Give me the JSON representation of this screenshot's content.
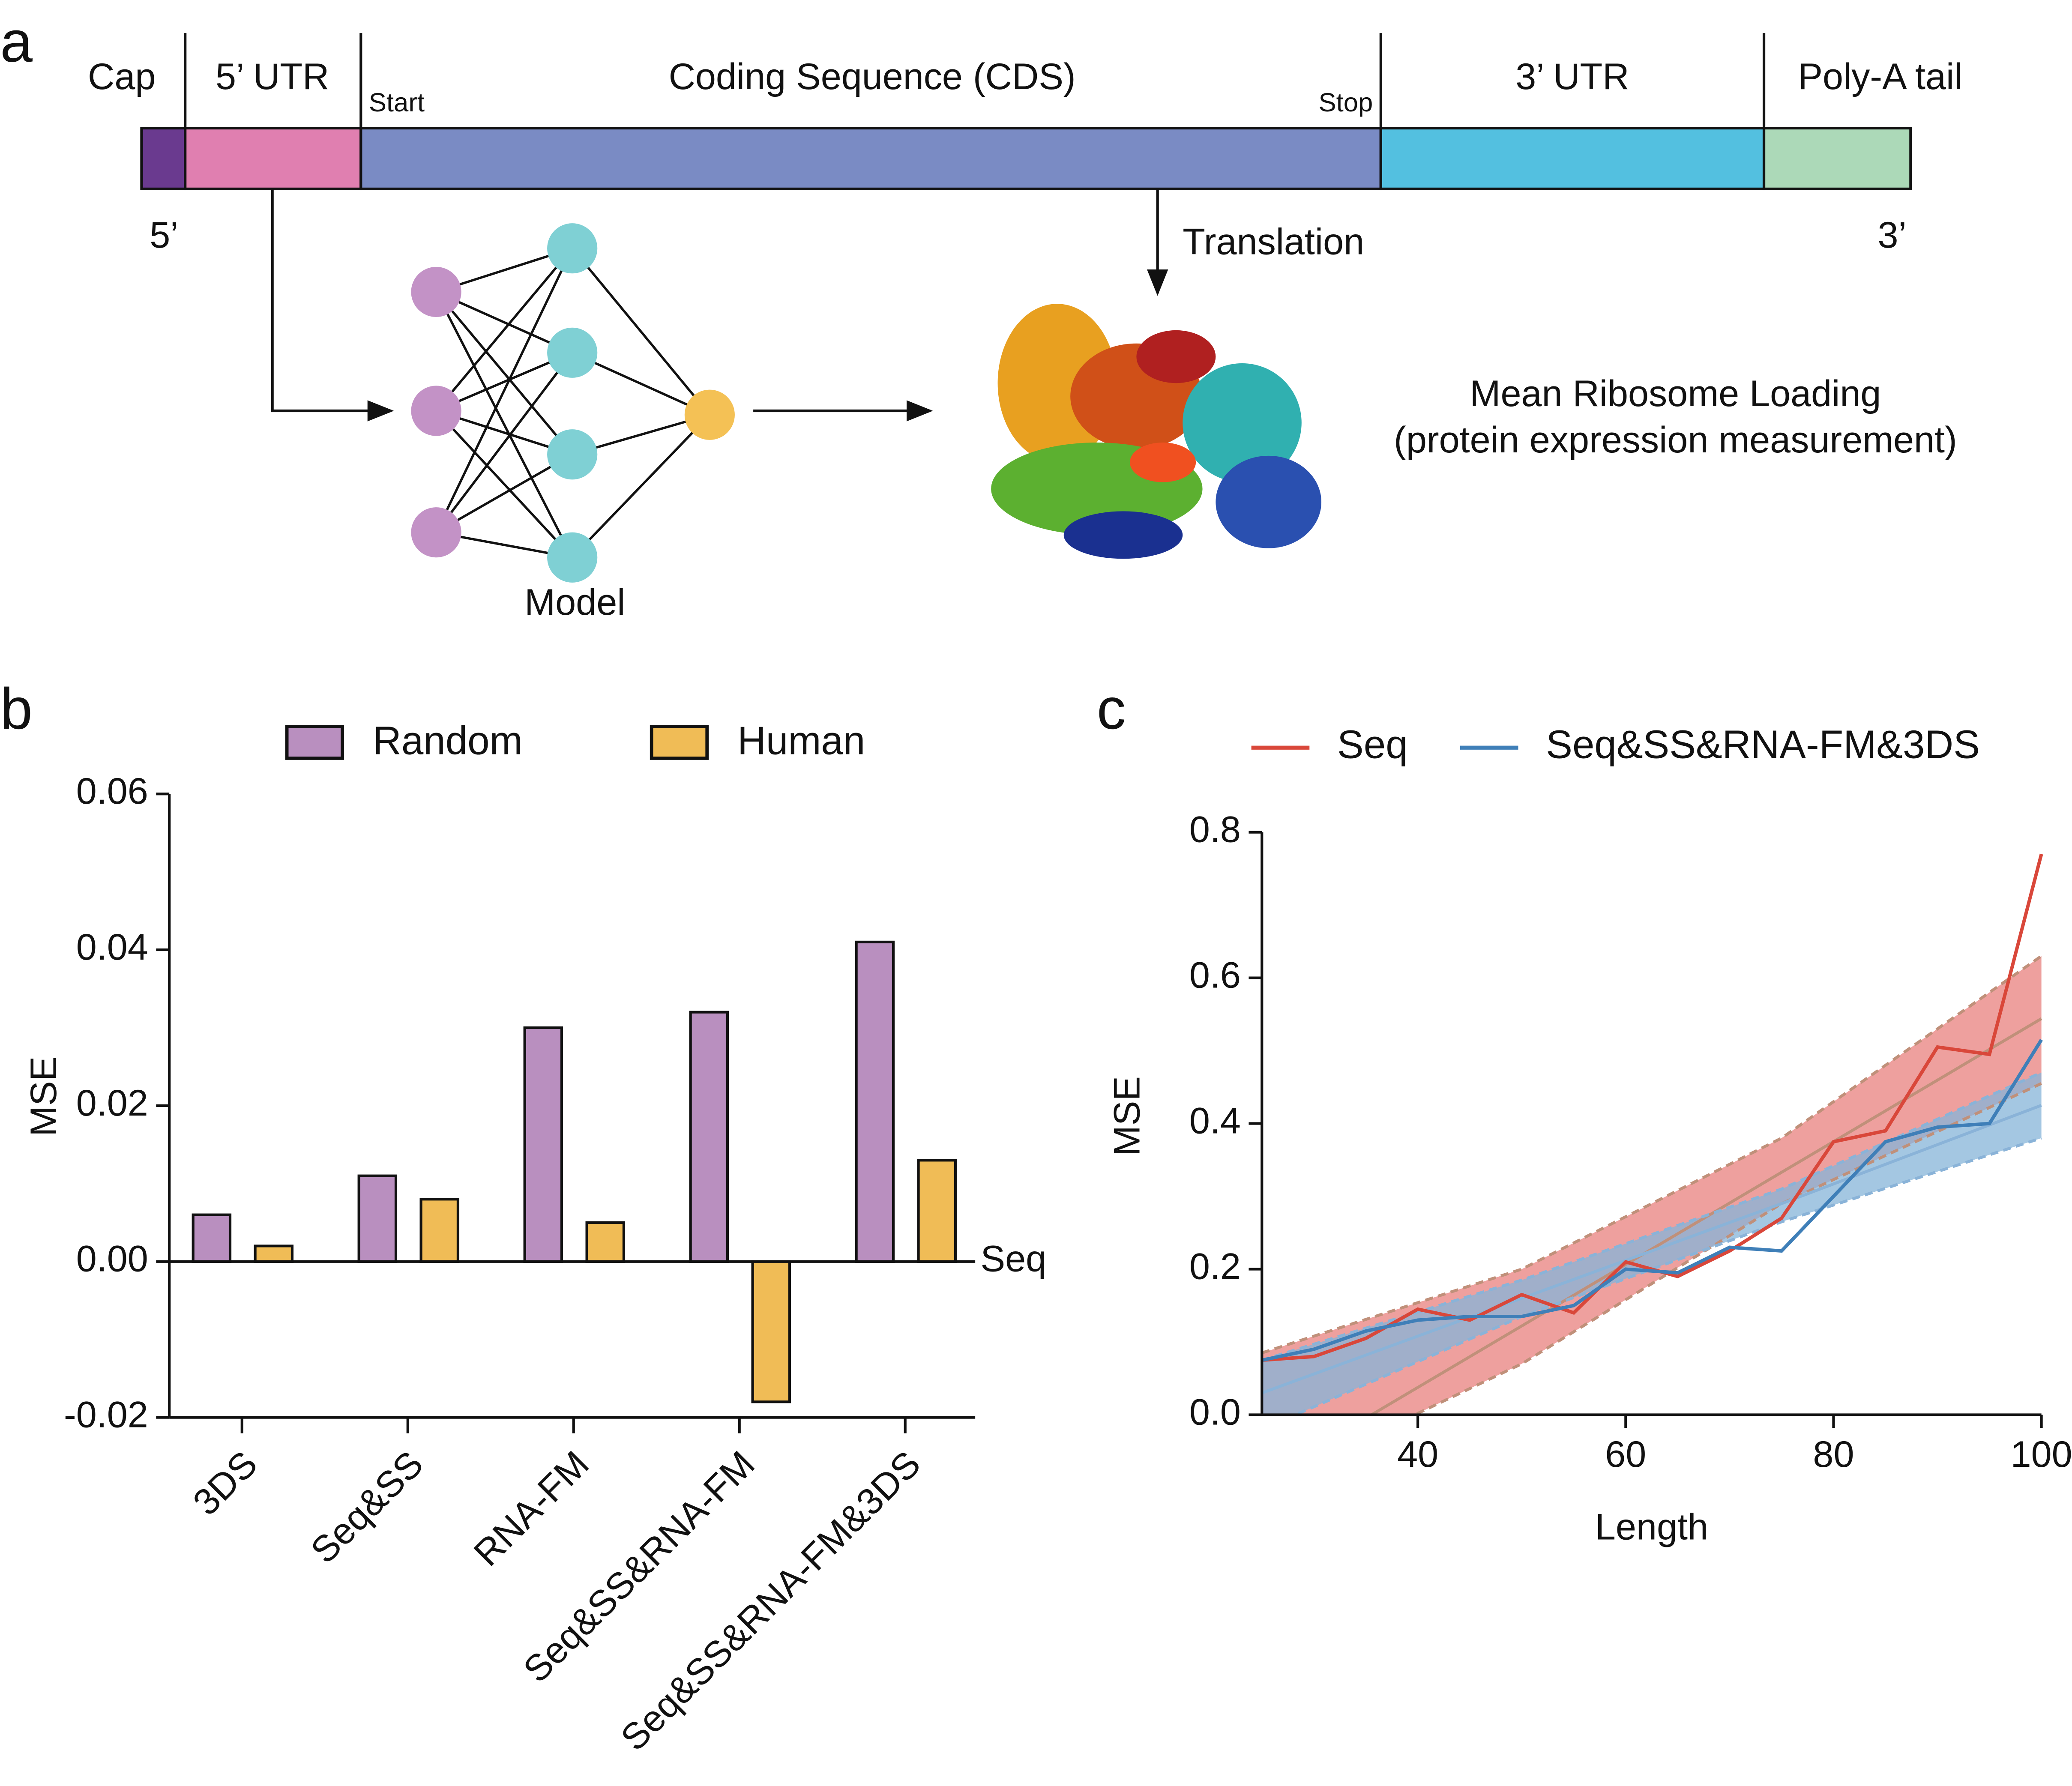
{
  "diagram": {
    "panel": "a",
    "cap": "Cap",
    "utr5": "5’ UTR",
    "start": "Start",
    "cds": "Coding Sequence (CDS)",
    "stop": "Stop",
    "utr3": "3’ UTR",
    "polya": "Poly-A tail",
    "end5": "5’",
    "end3": "3’",
    "translation": "Translation",
    "model": "Model",
    "mrl1": "Mean Ribosome Loading",
    "mrl2": "(protein expression measurement)"
  },
  "chart_data": [
    {
      "type": "bar",
      "panel": "b",
      "ylabel": "MSE",
      "annotation": "Seq",
      "categories": [
        "3DS",
        "Seq&SS",
        "RNA-FM",
        "Seq&SS&RNA-FM",
        "Seq&SS&RNA-FM&3DS"
      ],
      "series": [
        {
          "name": "Random",
          "color": "#b98fbf",
          "values": [
            0.006,
            0.011,
            0.03,
            0.032,
            0.041
          ]
        },
        {
          "name": "Human",
          "color": "#f0bc56",
          "values": [
            0.002,
            0.008,
            0.005,
            -0.018,
            0.013
          ]
        }
      ],
      "ylim": [
        -0.02,
        0.06
      ],
      "yticks": [
        -0.02,
        {
          "value": 0,
          "label": "0.00"
        },
        0.02,
        0.04,
        0.06
      ]
    },
    {
      "type": "line",
      "panel": "c",
      "xlabel": "Length",
      "ylabel": "MSE",
      "x": [
        25,
        30,
        35,
        40,
        45,
        50,
        55,
        60,
        65,
        70,
        75,
        80,
        85,
        90,
        95,
        100
      ],
      "series": [
        {
          "name": "Seq",
          "color": "#d9473a",
          "values": [
            0.075,
            0.08,
            0.105,
            0.145,
            0.13,
            0.165,
            0.14,
            0.21,
            0.19,
            0.225,
            0.27,
            0.375,
            0.39,
            0.505,
            0.495,
            0.77
          ]
        },
        {
          "name": "Seq&SS&RNA-FM&3DS",
          "color": "#3f7fb8",
          "values": [
            0.075,
            0.09,
            0.115,
            0.13,
            0.135,
            0.135,
            0.15,
            0.2,
            0.195,
            0.23,
            0.225,
            0.3,
            0.375,
            0.395,
            0.4,
            0.515
          ]
        }
      ],
      "fits": [
        {
          "color": "#e8807e",
          "line": "#c0907a",
          "x": [
            25,
            50,
            75,
            100
          ],
          "fit": [
            -0.089,
            0.122,
            0.333,
            0.544
          ],
          "lower": [
            -0.1,
            0.07,
            0.29,
            0.455
          ],
          "upper": [
            0.085,
            0.2,
            0.38,
            0.63
          ]
        },
        {
          "color": "#86b4d8",
          "line": "#8ab3d8",
          "x": [
            25,
            50,
            75,
            100
          ],
          "fit": [
            0.03,
            0.16,
            0.29,
            0.425
          ],
          "lower": [
            -0.02,
            0.135,
            0.265,
            0.38
          ],
          "upper": [
            0.075,
            0.185,
            0.31,
            0.47
          ]
        }
      ],
      "xlim": [
        25,
        100
      ],
      "xticks": [
        40,
        60,
        80,
        100
      ],
      "ylim": [
        0,
        0.8
      ],
      "yticks": [
        {
          "value": 0,
          "label": "0.0"
        },
        0.2,
        0.4,
        0.6,
        0.8
      ]
    }
  ]
}
